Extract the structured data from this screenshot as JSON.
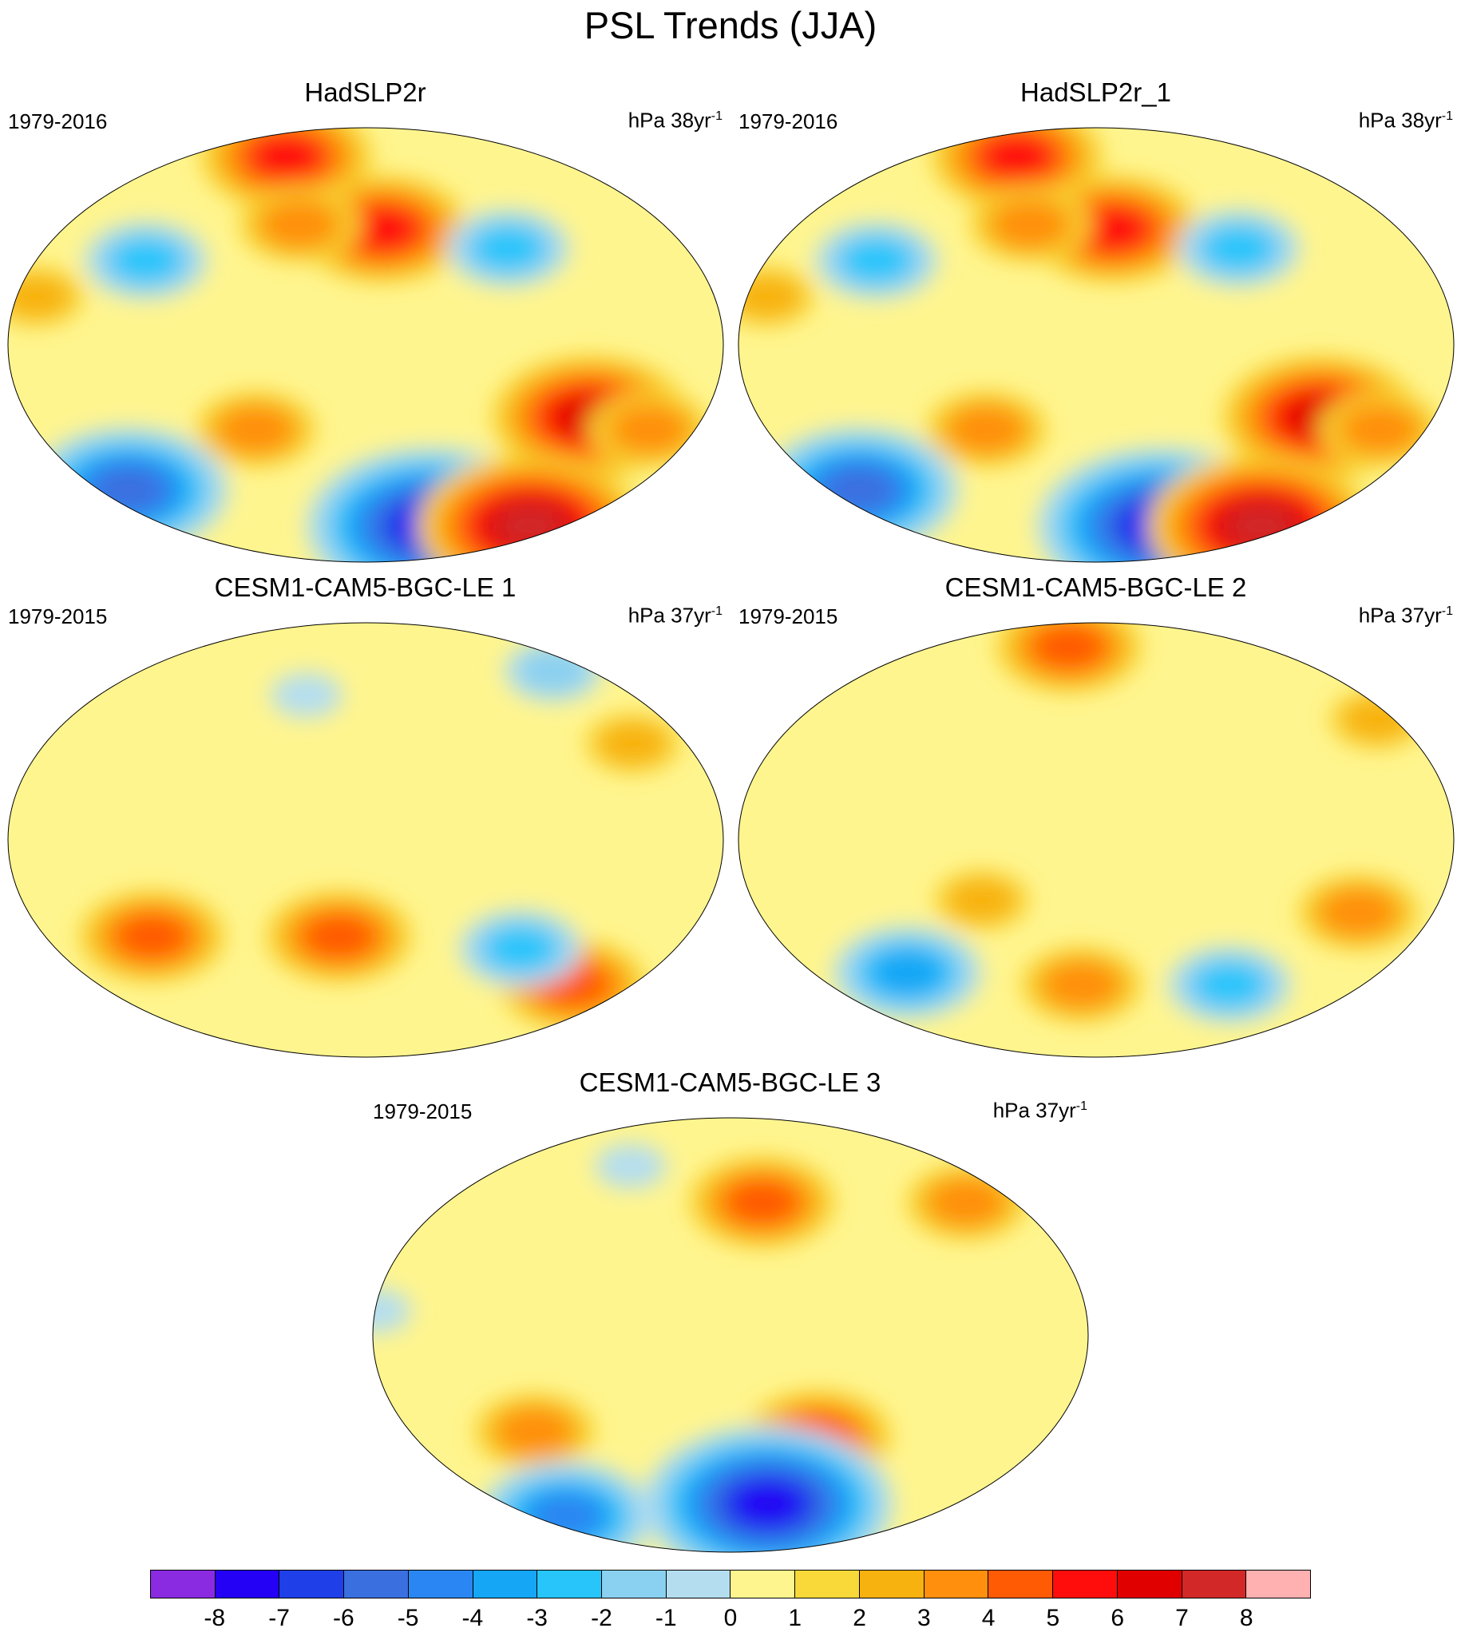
{
  "title": "PSL Trends (JJA)",
  "panels": [
    {
      "title": "HadSLP2r",
      "period": "1979-2016",
      "units": "hPa 38yr",
      "units_sup": "-1",
      "blobs": [
        {
          "lon": 100,
          "lat": 78,
          "val": 5
        },
        {
          "lon": -170,
          "lat": 48,
          "val": 5
        },
        {
          "lon": 140,
          "lat": 50,
          "val": 3
        },
        {
          "lon": -60,
          "lat": -30,
          "val": 6
        },
        {
          "lon": 120,
          "lat": -35,
          "val": 3
        },
        {
          "lon": -25,
          "lat": -35,
          "val": 3
        },
        {
          "lon": -120,
          "lat": -75,
          "val": -8
        },
        {
          "lon": 20,
          "lat": -60,
          "val": -6
        },
        {
          "lon": -30,
          "lat": -75,
          "val": 7
        },
        {
          "lon": 60,
          "lat": 35,
          "val": -3
        },
        {
          "lon": -100,
          "lat": 40,
          "val": -3
        },
        {
          "lon": 10,
          "lat": 20,
          "val": 2
        }
      ]
    },
    {
      "title": "HadSLP2r_1",
      "period": "1979-2016",
      "units": "hPa 38yr",
      "units_sup": "-1",
      "blobs": [
        {
          "lon": 100,
          "lat": 78,
          "val": 5
        },
        {
          "lon": -170,
          "lat": 48,
          "val": 5
        },
        {
          "lon": 140,
          "lat": 50,
          "val": 3
        },
        {
          "lon": -60,
          "lat": -30,
          "val": 6
        },
        {
          "lon": 120,
          "lat": -35,
          "val": 3
        },
        {
          "lon": -25,
          "lat": -35,
          "val": 3
        },
        {
          "lon": -120,
          "lat": -75,
          "val": -8
        },
        {
          "lon": 20,
          "lat": -60,
          "val": -6
        },
        {
          "lon": -30,
          "lat": -75,
          "val": 7
        },
        {
          "lon": 60,
          "lat": 35,
          "val": -3
        },
        {
          "lon": -100,
          "lat": 40,
          "val": -3
        },
        {
          "lon": 10,
          "lat": 20,
          "val": 2
        }
      ]
    },
    {
      "title": "CESM1-CAM5-BGC-LE 1",
      "period": "1979-2015",
      "units": "hPa 37yr",
      "units_sup": "-1",
      "blobs": [
        {
          "lon": 60,
          "lat": -40,
          "val": 4
        },
        {
          "lon": 165,
          "lat": -40,
          "val": 4
        },
        {
          "lon": -40,
          "lat": -60,
          "val": 4
        },
        {
          "lon": -90,
          "lat": -45,
          "val": -3
        },
        {
          "lon": -30,
          "lat": 70,
          "val": -2
        },
        {
          "lon": 140,
          "lat": 60,
          "val": -1
        },
        {
          "lon": -30,
          "lat": 40,
          "val": 2
        }
      ]
    },
    {
      "title": "CESM1-CAM5-BGC-LE 2",
      "period": "1979-2015",
      "units": "hPa 37yr",
      "units_sup": "-1",
      "blobs": [
        {
          "lon": 150,
          "lat": 80,
          "val": 4
        },
        {
          "lon": -40,
          "lat": -30,
          "val": 3
        },
        {
          "lon": 60,
          "lat": -55,
          "val": -4
        },
        {
          "lon": 120,
          "lat": -25,
          "val": 2
        },
        {
          "lon": -10,
          "lat": 50,
          "val": 2
        },
        {
          "lon": -90,
          "lat": -60,
          "val": -3
        },
        {
          "lon": 170,
          "lat": -60,
          "val": 3
        }
      ]
    },
    {
      "title": "CESM1-CAM5-BGC-LE 3",
      "period": "1979-2015",
      "units": "hPa 37yr",
      "units_sup": "-1",
      "blobs": [
        {
          "lon": -160,
          "lat": 55,
          "val": 4
        },
        {
          "lon": -130,
          "lat": -42,
          "val": 4
        },
        {
          "lon": 70,
          "lat": -40,
          "val": 3
        },
        {
          "lon": -150,
          "lat": -70,
          "val": -8
        },
        {
          "lon": 30,
          "lat": -75,
          "val": -5
        },
        {
          "lon": -30,
          "lat": 55,
          "val": 3
        },
        {
          "lon": 100,
          "lat": 70,
          "val": -1
        },
        {
          "lon": 0,
          "lat": 10,
          "val": -1
        }
      ]
    }
  ],
  "colorbar": {
    "labels": [
      "-8",
      "-7",
      "-6",
      "-5",
      "-4",
      "-3",
      "-2",
      "-1",
      "0",
      "1",
      "2",
      "3",
      "4",
      "5",
      "6",
      "7",
      "8"
    ],
    "colors": [
      "#8a2be2",
      "#2400f5",
      "#1f3fe8",
      "#3a6fe0",
      "#2a86f2",
      "#16a6f6",
      "#28c5fb",
      "#8ad0f0",
      "#b4def0",
      "#fff58f",
      "#f9d83a",
      "#f8b20f",
      "#ff8f0d",
      "#ff5a04",
      "#ff0d0d",
      "#e00000",
      "#d22828",
      "#ffb0b0"
    ]
  }
}
